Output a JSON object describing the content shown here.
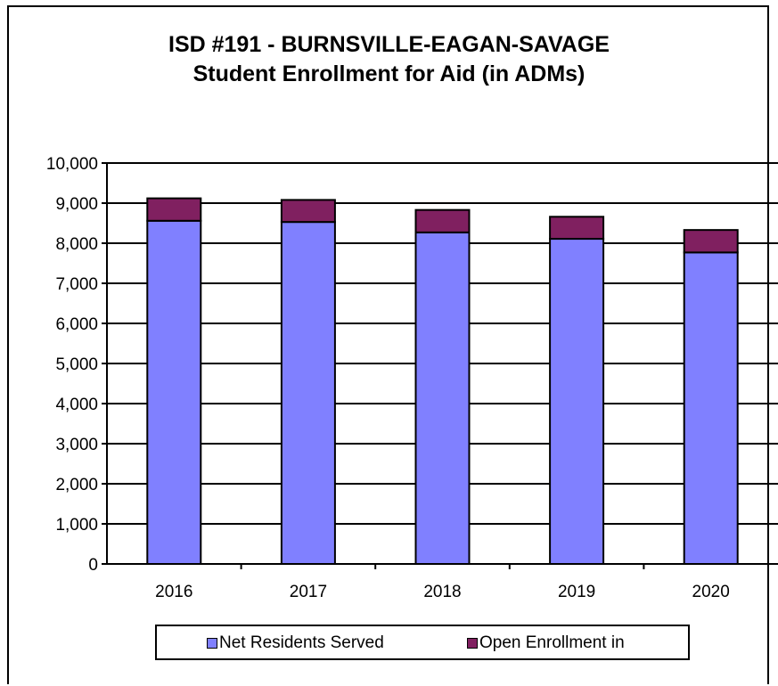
{
  "chart_data": {
    "type": "bar",
    "stacked": true,
    "title": [
      "ISD #191 - BURNSVILLE-EAGAN-SAVAGE",
      "Student Enrollment for Aid (in ADMs)"
    ],
    "categories": [
      "2016",
      "2017",
      "2018",
      "2019",
      "2020"
    ],
    "series": [
      {
        "name": "Net Residents Served",
        "color": "#8080ff",
        "values": [
          8560,
          8530,
          8270,
          8110,
          7770
        ]
      },
      {
        "name": "Open Enrollment in",
        "color": "#802060",
        "values": [
          560,
          550,
          560,
          550,
          560
        ]
      }
    ],
    "ylim": [
      0,
      10000
    ],
    "yticks": [
      "0",
      "1,000",
      "2,000",
      "3,000",
      "4,000",
      "5,000",
      "6,000",
      "7,000",
      "8,000",
      "9,000",
      "10,000"
    ],
    "grid": true,
    "legend_position": "bottom"
  }
}
